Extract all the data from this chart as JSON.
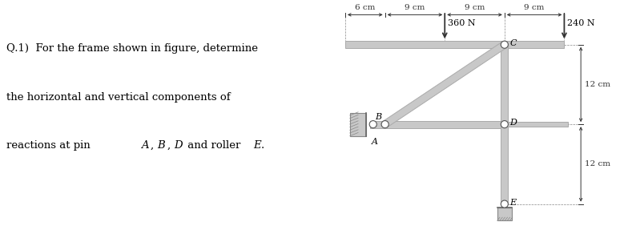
{
  "bg_color": "#ffffff",
  "member_color": "#c8c8c8",
  "member_edge_color": "#aaaaaa",
  "pin_color": "#ffffff",
  "pin_edge_color": "#555555",
  "wall_color": "#c0c0c0",
  "wall_edge_color": "#888888",
  "arrow_color": "#333333",
  "dim_color": "#333333",
  "text_color": "#222222",
  "question_line1": "Q.1)  For the frame shown in figure, determine",
  "question_line2": "the horizontal and vertical components of",
  "question_line3": "reactions at pin ",
  "question_line3b": "A",
  "question_line3c": ", ",
  "question_line3d": "B",
  "question_line3e": ", ",
  "question_line3f": "D",
  "question_line3g": " and roller ",
  "question_line3h": "E",
  "question_line3i": ".",
  "label_A": "A",
  "label_B": "B",
  "label_C": "C",
  "label_D": "D",
  "label_E": "E",
  "dim_6cm": "6 cm",
  "dim_9cm": "9 cm",
  "dim_12cm": "12 cm",
  "force_360": "360 N",
  "force_240": "240 N"
}
